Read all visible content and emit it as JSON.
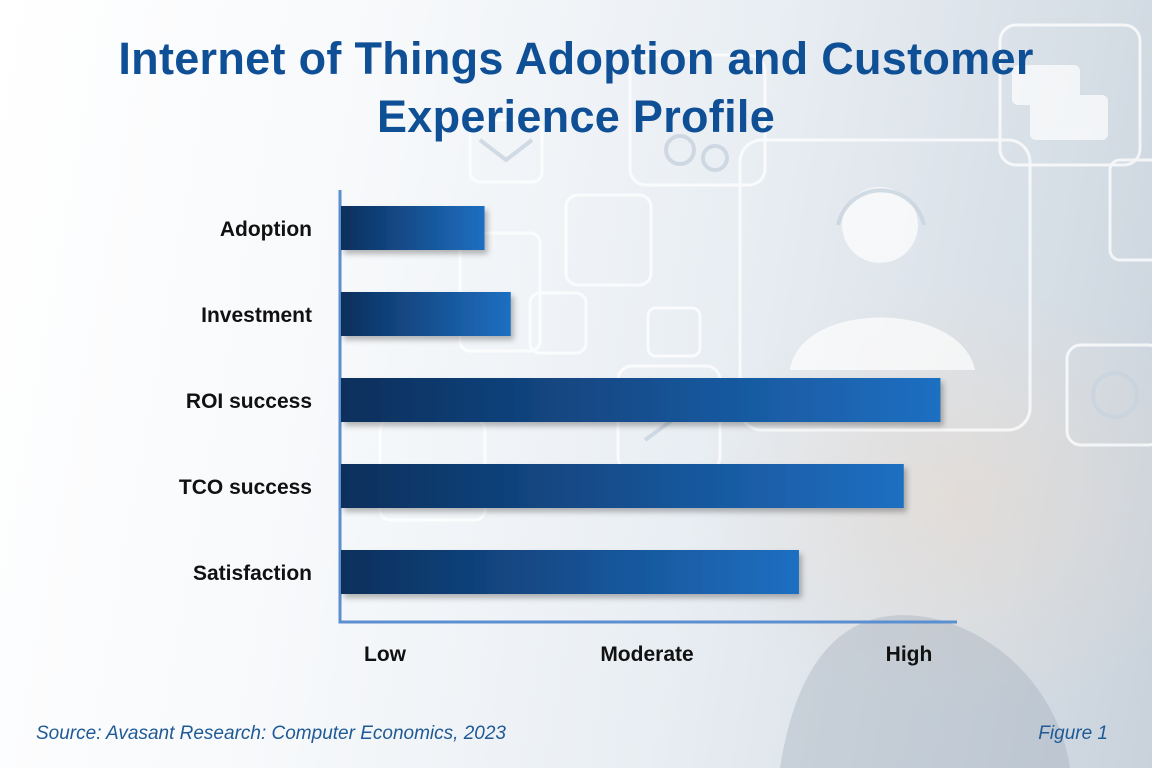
{
  "chart_data": {
    "type": "bar",
    "orientation": "horizontal",
    "title": "Internet of Things Adoption and Customer Experience Profile",
    "categories": [
      "Adoption",
      "Investment",
      "ROI success",
      "TCO success",
      "Satisfaction"
    ],
    "values": [
      0.19,
      0.24,
      1.06,
      0.99,
      0.79
    ],
    "xaxis": {
      "tick_labels": [
        "Low",
        "Moderate",
        "High"
      ],
      "tick_positions": [
        0,
        0.5,
        1
      ],
      "range": [
        -0.1,
        1.12
      ]
    },
    "colors": {
      "bar_dark": "#0b2f5c",
      "bar_light": "#1f6fc2",
      "axis": "#5b8fd0",
      "label": "#111111"
    }
  },
  "footer": {
    "source": "Source: Avasant Research: Computer Economics, 2023",
    "figure": "Figure 1"
  }
}
